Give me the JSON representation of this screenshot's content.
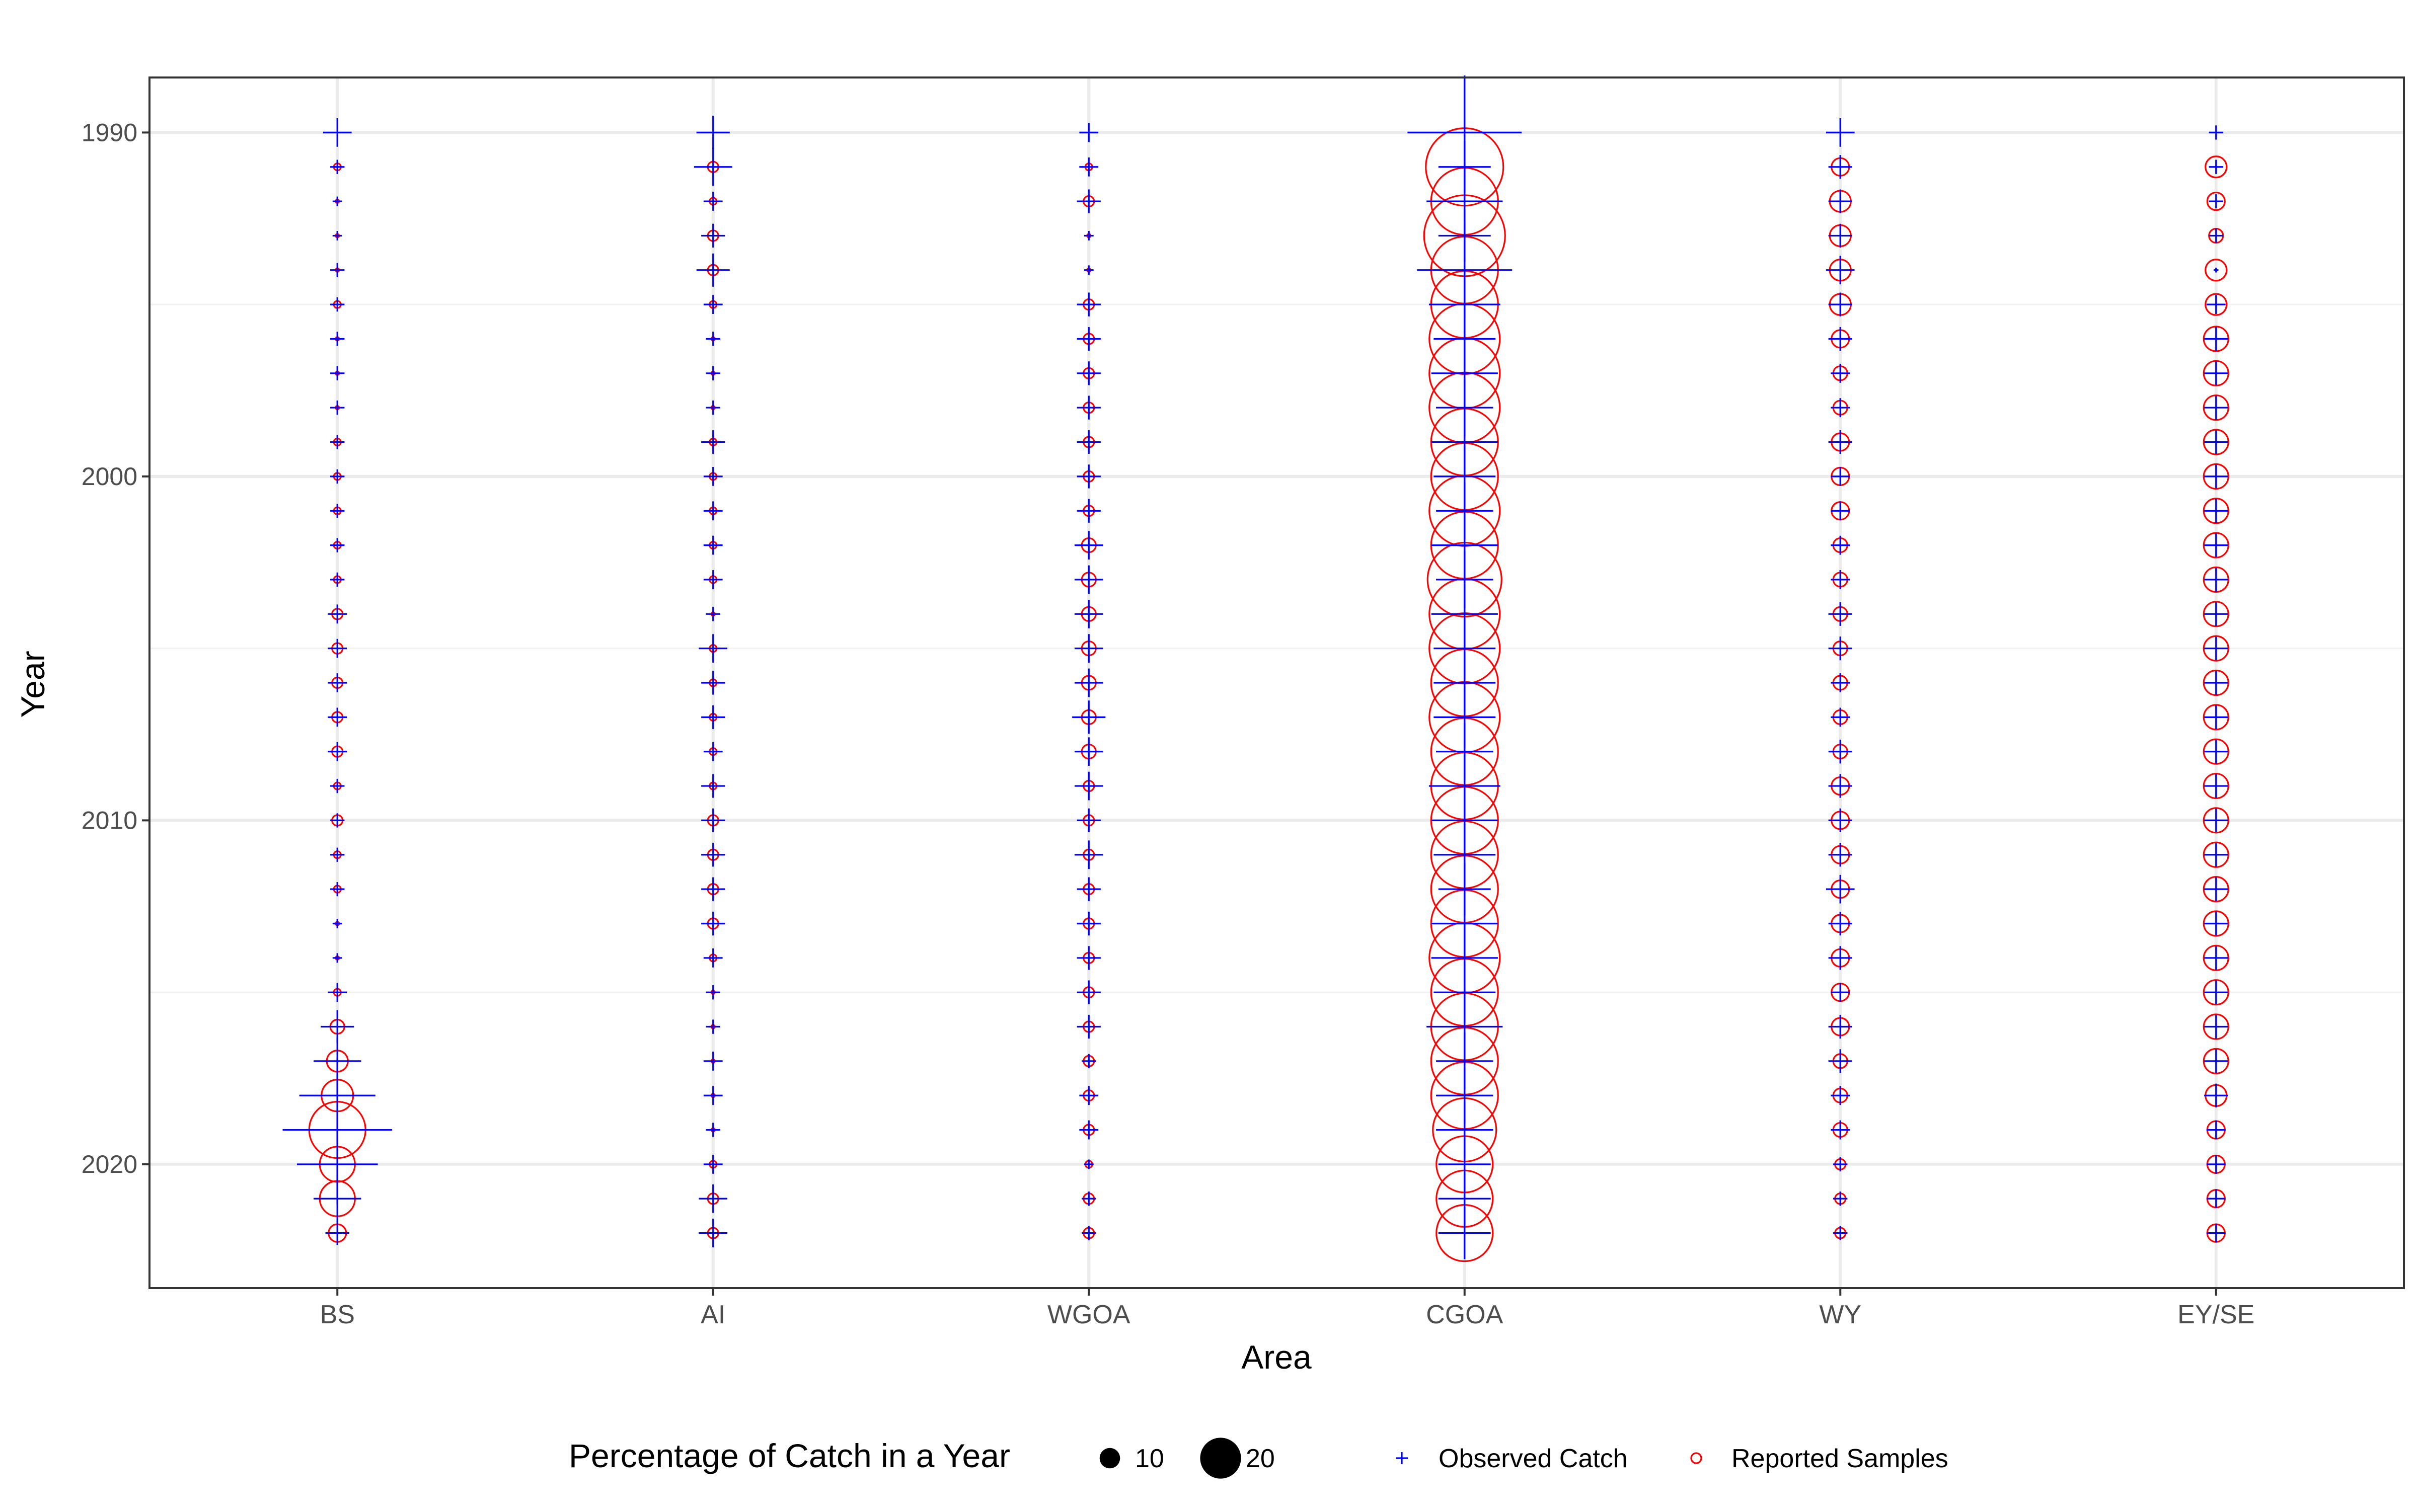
{
  "chart_data": {
    "type": "scatter",
    "title": "",
    "xlabel": "Area",
    "ylabel": "Year",
    "categories": [
      "BS",
      "AI",
      "WGOA",
      "CGOA",
      "WY",
      "EY/SE"
    ],
    "years": [
      1990,
      1991,
      1992,
      1993,
      1994,
      1995,
      1996,
      1997,
      1998,
      1999,
      2000,
      2001,
      2002,
      2003,
      2004,
      2005,
      2006,
      2007,
      2008,
      2009,
      2010,
      2011,
      2012,
      2013,
      2014,
      2015,
      2016,
      2017,
      2018,
      2019,
      2020,
      2021,
      2022
    ],
    "y_ticks": [
      1990,
      2000,
      2010,
      2020
    ],
    "y_tick_labels": [
      "1990",
      "2000",
      "2010",
      "2020"
    ],
    "ylim": [
      1988.4,
      2023.6
    ],
    "y_reversed": true,
    "grid": true,
    "size_legend_title": "Percentage of Catch in a Year",
    "size_legend_values": [
      10,
      20
    ],
    "size_legend_labels": [
      "10",
      "20"
    ],
    "legend_position": "bottom",
    "series": [
      {
        "name": "Observed Catch",
        "shape": "plus",
        "color": "#0000ff",
        "values": {
          "BS": [
            6,
            3,
            2,
            2,
            3,
            3,
            3,
            3,
            3,
            3,
            3,
            3,
            3,
            3,
            4,
            4,
            4,
            4,
            4,
            3,
            3,
            3,
            3,
            2,
            2,
            4,
            7,
            10,
            16,
            23,
            17,
            10,
            5
          ],
          "AI": [
            7,
            8,
            4,
            5,
            7,
            4,
            3,
            3,
            3,
            5,
            4,
            4,
            4,
            4,
            3,
            6,
            5,
            5,
            4,
            5,
            5,
            5,
            5,
            5,
            4,
            3,
            3,
            4,
            4,
            3,
            4,
            6,
            6
          ],
          "WGOA": [
            4,
            4,
            5,
            2,
            2,
            5,
            5,
            5,
            5,
            5,
            5,
            5,
            6,
            6,
            6,
            6,
            6,
            7,
            6,
            6,
            5,
            6,
            5,
            5,
            5,
            5,
            5,
            3,
            4,
            4,
            2,
            3,
            3
          ],
          "CGOA": [
            24,
            11,
            16,
            11,
            20,
            15,
            13,
            14,
            12,
            14,
            13,
            12,
            14,
            12,
            14,
            13,
            13,
            13,
            12,
            15,
            14,
            13,
            11,
            14,
            14,
            13,
            16,
            12,
            12,
            12,
            11,
            11,
            11
          ],
          "WY": [
            6,
            5,
            5,
            5,
            6,
            5,
            5,
            4,
            4,
            5,
            4,
            4,
            4,
            4,
            5,
            5,
            4,
            4,
            5,
            5,
            5,
            5,
            6,
            5,
            5,
            4,
            5,
            5,
            4,
            4,
            3,
            3,
            3
          ],
          "EY/SE": [
            3,
            3,
            3,
            3,
            1,
            4,
            5,
            5,
            5,
            5,
            5,
            5,
            5,
            5,
            5,
            5,
            5,
            5,
            5,
            5,
            5,
            5,
            5,
            5,
            5,
            5,
            5,
            5,
            5,
            4,
            4,
            4,
            4
          ]
        }
      },
      {
        "name": "Reported Samples",
        "shape": "circle",
        "color": "#ff0000",
        "values": {
          "BS": [
            null,
            2,
            1,
            1,
            1,
            2,
            1,
            1,
            1,
            2,
            2,
            2,
            2,
            2,
            3,
            3,
            3,
            3,
            3,
            2,
            3,
            2,
            2,
            1,
            1,
            2,
            4,
            6,
            9,
            16,
            10,
            10,
            5
          ],
          "AI": [
            null,
            3,
            2,
            3,
            3,
            2,
            1,
            1,
            1,
            2,
            2,
            2,
            2,
            2,
            1,
            2,
            2,
            2,
            2,
            2,
            3,
            3,
            3,
            3,
            2,
            1,
            1,
            1,
            1,
            1,
            2,
            3,
            3
          ],
          "WGOA": [
            null,
            2,
            3,
            1,
            1,
            3,
            3,
            3,
            3,
            3,
            3,
            3,
            4,
            4,
            4,
            4,
            4,
            4,
            4,
            3,
            3,
            3,
            3,
            3,
            3,
            3,
            3,
            3,
            3,
            3,
            2,
            3,
            3
          ],
          "CGOA": [
            null,
            22,
            19,
            23,
            19,
            19,
            20,
            20,
            20,
            19,
            19,
            20,
            19,
            21,
            20,
            20,
            19,
            20,
            19,
            19,
            19,
            19,
            19,
            19,
            20,
            19,
            19,
            19,
            19,
            18,
            16,
            16,
            16
          ],
          "WY": [
            null,
            5,
            6,
            6,
            6,
            6,
            5,
            4,
            4,
            5,
            5,
            5,
            4,
            4,
            4,
            4,
            4,
            4,
            4,
            5,
            5,
            5,
            5,
            5,
            5,
            5,
            5,
            4,
            4,
            4,
            3,
            3,
            3
          ],
          "EY/SE": [
            null,
            6,
            5,
            4,
            6,
            6,
            7,
            7,
            7,
            7,
            7,
            7,
            7,
            7,
            7,
            7,
            7,
            7,
            7,
            7,
            7,
            7,
            7,
            7,
            7,
            7,
            7,
            7,
            6,
            5,
            5,
            5,
            5
          ]
        }
      }
    ]
  }
}
